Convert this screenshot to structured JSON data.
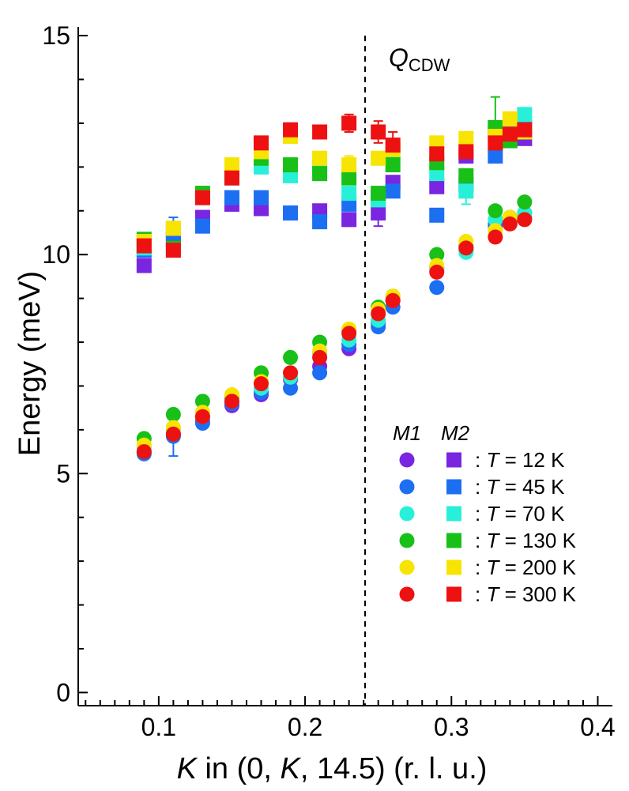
{
  "chart_data": {
    "type": "scatter",
    "xlabel": {
      "italic": "K",
      "rest": " in (0, ",
      "italic2": "K",
      "rest2": ", 14.5) (r. l. u.)"
    },
    "ylabel": "Energy (meV)",
    "xlim": [
      0.045,
      0.41
    ],
    "ylim": [
      -0.3,
      15.2
    ],
    "xticks": [
      "0.1",
      "0.2",
      "0.3",
      "0.4"
    ],
    "xtick_values": [
      0.1,
      0.2,
      0.3,
      0.4
    ],
    "yticks": [
      "0",
      "5",
      "10",
      "15"
    ],
    "ytick_values": [
      0,
      5,
      10,
      15
    ],
    "grid": false,
    "annotation": {
      "q": "Q",
      "sub": "CDW",
      "x": 0.241
    },
    "legend": {
      "position": "bottom-right",
      "header_m1": "M1",
      "header_m2": "M2",
      "entries": [
        {
          "label_t": "T",
          "label_rest": " = 12 K",
          "color": "#7a25e0"
        },
        {
          "label_t": "T",
          "label_rest": " = 45 K",
          "color": "#1d6ff2"
        },
        {
          "label_t": "T",
          "label_rest": " = 70 K",
          "color": "#28f0d8"
        },
        {
          "label_t": "T",
          "label_rest": " = 130 K",
          "color": "#18c018"
        },
        {
          "label_t": "T",
          "label_rest": " = 200 K",
          "color": "#f7e400"
        },
        {
          "label_t": "T",
          "label_rest": " = 300 K",
          "color": "#ee1111"
        }
      ],
      "colon": ":"
    },
    "series": [
      {
        "mode": "M1",
        "temperature": "12 K",
        "color": "#7a25e0",
        "x": [
          0.09,
          0.11,
          0.13,
          0.15,
          0.17,
          0.19,
          0.21,
          0.23,
          0.25,
          0.26,
          0.29,
          0.31,
          0.33,
          0.34,
          0.35
        ],
        "y": [
          5.5,
          5.9,
          6.2,
          6.55,
          6.8,
          7.15,
          7.45,
          7.85,
          8.45,
          8.95,
          9.7,
          10.15,
          10.7,
          10.8,
          10.95
        ]
      },
      {
        "mode": "M1",
        "temperature": "45 K",
        "color": "#1d6ff2",
        "x": [
          0.09,
          0.11,
          0.13,
          0.15,
          0.17,
          0.19,
          0.21,
          0.23,
          0.25,
          0.26,
          0.29,
          0.31,
          0.33,
          0.34,
          0.35
        ],
        "y": [
          5.45,
          5.85,
          6.15,
          6.6,
          6.85,
          6.95,
          7.3,
          7.95,
          8.35,
          8.8,
          9.25,
          10.1,
          10.65,
          10.75,
          10.85
        ]
      },
      {
        "mode": "M1",
        "temperature": "70 K",
        "color": "#28f0d8",
        "x": [
          0.09,
          0.11,
          0.13,
          0.15,
          0.17,
          0.19,
          0.21,
          0.23,
          0.25,
          0.26,
          0.29,
          0.31,
          0.33,
          0.34,
          0.35
        ],
        "y": [
          5.6,
          6.0,
          6.3,
          6.7,
          6.95,
          7.2,
          7.75,
          8.05,
          8.5,
          9.0,
          9.65,
          10.05,
          10.8,
          10.85,
          10.95
        ]
      },
      {
        "mode": "M1",
        "temperature": "130 K",
        "color": "#18c018",
        "x": [
          0.09,
          0.11,
          0.13,
          0.15,
          0.17,
          0.19,
          0.21,
          0.23,
          0.25,
          0.26,
          0.29,
          0.31,
          0.33,
          0.34,
          0.35
        ],
        "y": [
          5.8,
          6.35,
          6.65,
          6.75,
          7.3,
          7.65,
          8.0,
          8.25,
          8.8,
          9.05,
          10.0,
          10.2,
          11.0,
          10.85,
          11.2
        ]
      },
      {
        "mode": "M1",
        "temperature": "200 K",
        "color": "#f7e400",
        "x": [
          0.09,
          0.11,
          0.13,
          0.15,
          0.17,
          0.19,
          0.21,
          0.23,
          0.25,
          0.26,
          0.29,
          0.31,
          0.33,
          0.34,
          0.35
        ],
        "y": [
          5.65,
          6.05,
          6.4,
          6.8,
          7.1,
          7.3,
          7.8,
          8.3,
          8.75,
          9.05,
          9.75,
          10.3,
          10.55,
          10.85,
          10.8
        ]
      },
      {
        "mode": "M1",
        "temperature": "300 K",
        "color": "#ee1111",
        "x": [
          0.09,
          0.11,
          0.13,
          0.15,
          0.17,
          0.19,
          0.21,
          0.23,
          0.25,
          0.26,
          0.29,
          0.31,
          0.33,
          0.34,
          0.35
        ],
        "y": [
          5.5,
          5.9,
          6.3,
          6.65,
          7.05,
          7.3,
          7.65,
          8.2,
          8.65,
          8.95,
          9.6,
          10.15,
          10.4,
          10.7,
          10.8
        ]
      },
      {
        "mode": "M2",
        "temperature": "12 K",
        "color": "#7a25e0",
        "x": [
          0.09,
          0.11,
          0.13,
          0.15,
          0.17,
          0.19,
          0.21,
          0.23,
          0.25,
          0.26,
          0.29,
          0.31,
          0.33,
          0.34,
          0.35
        ],
        "y": [
          9.75,
          10.35,
          10.85,
          11.15,
          11.05,
          10.95,
          11.0,
          10.8,
          10.95,
          11.65,
          11.55,
          12.25,
          12.75,
          12.8,
          12.65
        ]
      },
      {
        "mode": "M2",
        "temperature": "45 K",
        "color": "#1d6ff2",
        "x": [
          0.09,
          0.11,
          0.13,
          0.15,
          0.17,
          0.19,
          0.21,
          0.23,
          0.25,
          0.26,
          0.29,
          0.31,
          0.33,
          0.34,
          0.35
        ],
        "y": [
          10.1,
          10.5,
          10.65,
          11.3,
          11.3,
          10.95,
          10.75,
          11.15,
          11.3,
          11.45,
          10.9,
          11.6,
          12.25,
          12.9,
          12.9
        ]
      },
      {
        "mode": "M2",
        "temperature": "70 K",
        "color": "#28f0d8",
        "x": [
          0.09,
          0.11,
          0.13,
          0.15,
          0.17,
          0.19,
          0.21,
          0.23,
          0.25,
          0.26,
          0.29,
          0.31,
          0.33,
          0.34,
          0.35
        ],
        "y": [
          10.15,
          10.6,
          11.35,
          11.75,
          12.0,
          11.8,
          12.0,
          11.4,
          11.25,
          12.3,
          11.85,
          11.45,
          12.85,
          12.95,
          13.2
        ]
      },
      {
        "mode": "M2",
        "temperature": "130 K",
        "color": "#18c018",
        "x": [
          0.09,
          0.11,
          0.13,
          0.15,
          0.17,
          0.19,
          0.21,
          0.23,
          0.25,
          0.26,
          0.29,
          0.31,
          0.33,
          0.34,
          0.35
        ],
        "y": [
          10.35,
          10.15,
          11.4,
          11.8,
          12.2,
          12.05,
          11.85,
          11.75,
          11.4,
          12.05,
          12.1,
          11.8,
          12.9,
          12.6,
          12.8
        ]
      },
      {
        "mode": "M2",
        "temperature": "200 K",
        "color": "#f7e400",
        "x": [
          0.09,
          0.11,
          0.13,
          0.15,
          0.17,
          0.19,
          0.21,
          0.23,
          0.25,
          0.26,
          0.29,
          0.31,
          0.33,
          0.34,
          0.35
        ],
        "y": [
          10.3,
          10.6,
          11.3,
          12.05,
          12.35,
          12.7,
          12.2,
          12.05,
          12.2,
          12.4,
          12.55,
          12.65,
          12.7,
          13.1,
          12.8
        ]
      },
      {
        "mode": "M2",
        "temperature": "300 K",
        "color": "#ee1111",
        "x": [
          0.09,
          0.11,
          0.13,
          0.15,
          0.17,
          0.19,
          0.21,
          0.23,
          0.25,
          0.26,
          0.29,
          0.31,
          0.33,
          0.34,
          0.35
        ],
        "y": [
          10.2,
          10.1,
          11.3,
          11.75,
          12.55,
          12.85,
          12.8,
          13.0,
          12.8,
          12.5,
          12.3,
          12.35,
          12.55,
          12.75,
          12.85
        ]
      }
    ]
  }
}
